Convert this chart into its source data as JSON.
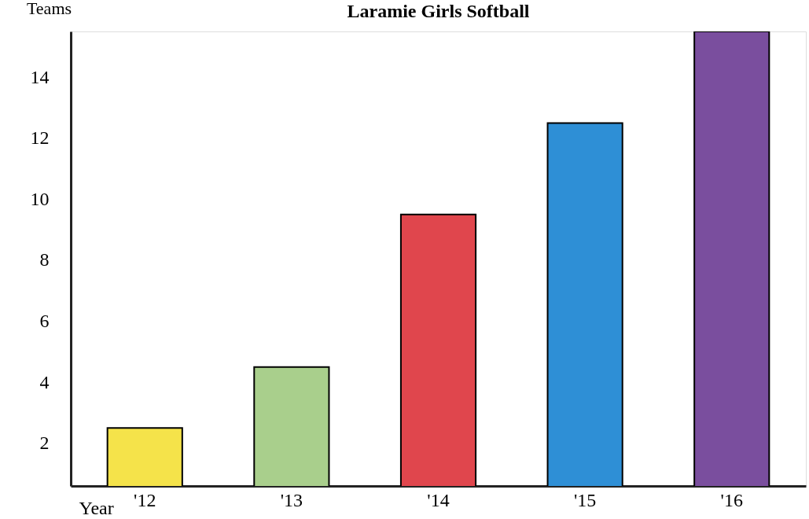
{
  "chart_data": {
    "type": "bar",
    "title": "Laramie Girls Softball",
    "xlabel": "Year",
    "ylabel": "Teams",
    "categories": [
      "'12",
      "'13",
      "'14",
      "'15",
      "'16"
    ],
    "values": [
      2.5,
      4.5,
      9.5,
      12.5,
      15.5
    ],
    "colors": [
      "#f5e34a",
      "#a9cf8c",
      "#e0464d",
      "#2e8fd6",
      "#7a4e9e"
    ],
    "ylim": [
      0.6,
      15.5
    ],
    "yticks": [
      2,
      4,
      6,
      8,
      10,
      12,
      14
    ],
    "grid": false
  }
}
